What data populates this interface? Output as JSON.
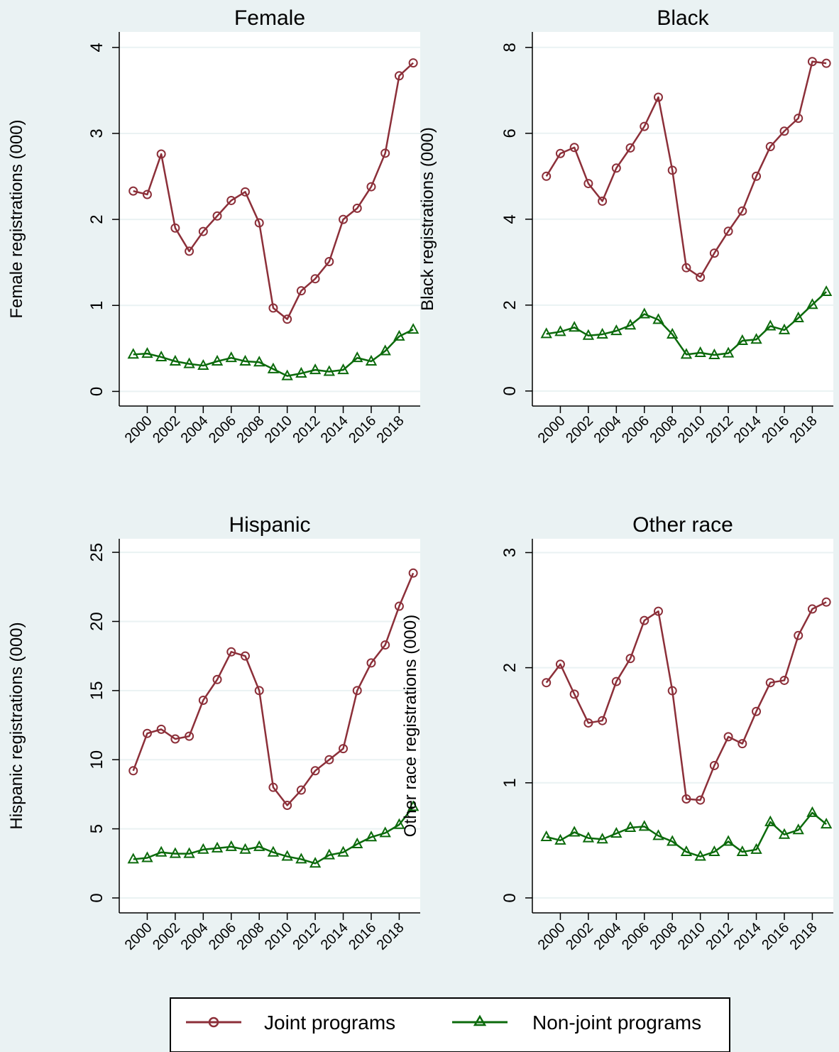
{
  "chart_data": [
    {
      "type": "line",
      "title": "Female",
      "y_label": "Female registrations (000)",
      "x": [
        1999,
        2000,
        2001,
        2002,
        2003,
        2004,
        2005,
        2006,
        2007,
        2008,
        2009,
        2010,
        2011,
        2012,
        2013,
        2014,
        2015,
        2016,
        2017,
        2018,
        2019
      ],
      "series": [
        {
          "name": "Joint programs",
          "color": "#8c2f39",
          "marker": "circle",
          "values": [
            2.33,
            2.29,
            2.76,
            1.9,
            1.63,
            1.86,
            2.04,
            2.22,
            2.32,
            1.96,
            0.97,
            0.84,
            1.17,
            1.31,
            1.51,
            2.0,
            2.13,
            2.38,
            2.77,
            3.67,
            3.82
          ]
        },
        {
          "name": "Non-joint programs",
          "color": "#0b6a0b",
          "marker": "triangle",
          "values": [
            0.43,
            0.44,
            0.4,
            0.35,
            0.32,
            0.3,
            0.35,
            0.39,
            0.35,
            0.34,
            0.26,
            0.18,
            0.21,
            0.25,
            0.23,
            0.25,
            0.39,
            0.35,
            0.47,
            0.64,
            0.72
          ]
        }
      ],
      "xlim": [
        1998,
        2019.5
      ],
      "xticks": [
        2000,
        2002,
        2004,
        2006,
        2008,
        2010,
        2012,
        2014,
        2016,
        2018
      ],
      "ylim": [
        -0.17,
        4.18
      ],
      "yticks": [
        0,
        1,
        2,
        3,
        4
      ],
      "grid": true
    },
    {
      "type": "line",
      "title": "Black",
      "y_label": "Black registrations (000)",
      "x": [
        1999,
        2000,
        2001,
        2002,
        2003,
        2004,
        2005,
        2006,
        2007,
        2008,
        2009,
        2010,
        2011,
        2012,
        2013,
        2014,
        2015,
        2016,
        2017,
        2018,
        2019
      ],
      "series": [
        {
          "name": "Joint programs",
          "color": "#8c2f39",
          "marker": "circle",
          "values": [
            5.0,
            5.53,
            5.67,
            4.83,
            4.42,
            5.19,
            5.66,
            6.16,
            6.84,
            5.14,
            2.87,
            2.65,
            3.21,
            3.72,
            4.19,
            5.0,
            5.69,
            6.05,
            6.35,
            7.67,
            7.63
          ]
        },
        {
          "name": "Non-joint programs",
          "color": "#0b6a0b",
          "marker": "triangle",
          "values": [
            1.33,
            1.38,
            1.48,
            1.29,
            1.32,
            1.4,
            1.53,
            1.79,
            1.66,
            1.32,
            0.85,
            0.89,
            0.84,
            0.88,
            1.17,
            1.2,
            1.51,
            1.42,
            1.7,
            2.01,
            2.31
          ]
        }
      ],
      "xlim": [
        1998,
        2019.5
      ],
      "xticks": [
        2000,
        2002,
        2004,
        2006,
        2008,
        2010,
        2012,
        2014,
        2016,
        2018
      ],
      "ylim": [
        -0.35,
        8.36
      ],
      "yticks": [
        0,
        2,
        4,
        6,
        8
      ],
      "grid": true
    },
    {
      "type": "line",
      "title": "Hispanic",
      "y_label": "Hispanic registrations (000)",
      "x": [
        1999,
        2000,
        2001,
        2002,
        2003,
        2004,
        2005,
        2006,
        2007,
        2008,
        2009,
        2010,
        2011,
        2012,
        2013,
        2014,
        2015,
        2016,
        2017,
        2018,
        2019
      ],
      "series": [
        {
          "name": "Joint programs",
          "color": "#8c2f39",
          "marker": "circle",
          "values": [
            9.2,
            11.9,
            12.2,
            11.5,
            11.7,
            14.3,
            15.8,
            17.8,
            17.5,
            15.0,
            8.0,
            6.7,
            7.8,
            9.2,
            10.0,
            10.8,
            15.0,
            17.0,
            18.3,
            21.1,
            23.5
          ]
        },
        {
          "name": "Non-joint programs",
          "color": "#0b6a0b",
          "marker": "triangle",
          "values": [
            2.8,
            2.9,
            3.3,
            3.2,
            3.2,
            3.5,
            3.6,
            3.7,
            3.5,
            3.7,
            3.3,
            3.0,
            2.8,
            2.5,
            3.1,
            3.3,
            3.9,
            4.4,
            4.7,
            5.3,
            6.6
          ]
        }
      ],
      "xlim": [
        1998,
        2019.5
      ],
      "xticks": [
        2000,
        2002,
        2004,
        2006,
        2008,
        2010,
        2012,
        2014,
        2016,
        2018
      ],
      "ylim": [
        -1.08,
        25.98
      ],
      "yticks": [
        0,
        5,
        10,
        15,
        20,
        25
      ],
      "grid": true
    },
    {
      "type": "line",
      "title": "Other race",
      "y_label": "Other race registrations (000)",
      "x": [
        1999,
        2000,
        2001,
        2002,
        2003,
        2004,
        2005,
        2006,
        2007,
        2008,
        2009,
        2010,
        2011,
        2012,
        2013,
        2014,
        2015,
        2016,
        2017,
        2018,
        2019
      ],
      "series": [
        {
          "name": "Joint programs",
          "color": "#8c2f39",
          "marker": "circle",
          "values": [
            1.87,
            2.03,
            1.77,
            1.52,
            1.54,
            1.88,
            2.08,
            2.41,
            2.49,
            1.8,
            0.86,
            0.85,
            1.15,
            1.4,
            1.34,
            1.62,
            1.87,
            1.89,
            2.28,
            2.51,
            2.57
          ]
        },
        {
          "name": "Non-joint programs",
          "color": "#0b6a0b",
          "marker": "triangle",
          "values": [
            0.53,
            0.5,
            0.57,
            0.52,
            0.51,
            0.56,
            0.61,
            0.62,
            0.54,
            0.49,
            0.4,
            0.36,
            0.4,
            0.49,
            0.4,
            0.42,
            0.66,
            0.55,
            0.59,
            0.74,
            0.64
          ]
        }
      ],
      "xlim": [
        1998,
        2019.5
      ],
      "xticks": [
        2000,
        2002,
        2004,
        2006,
        2008,
        2010,
        2012,
        2014,
        2016,
        2018
      ],
      "ylim": [
        -0.13,
        3.12
      ],
      "yticks": [
        0,
        1,
        2,
        3
      ],
      "grid": true
    }
  ]
}
